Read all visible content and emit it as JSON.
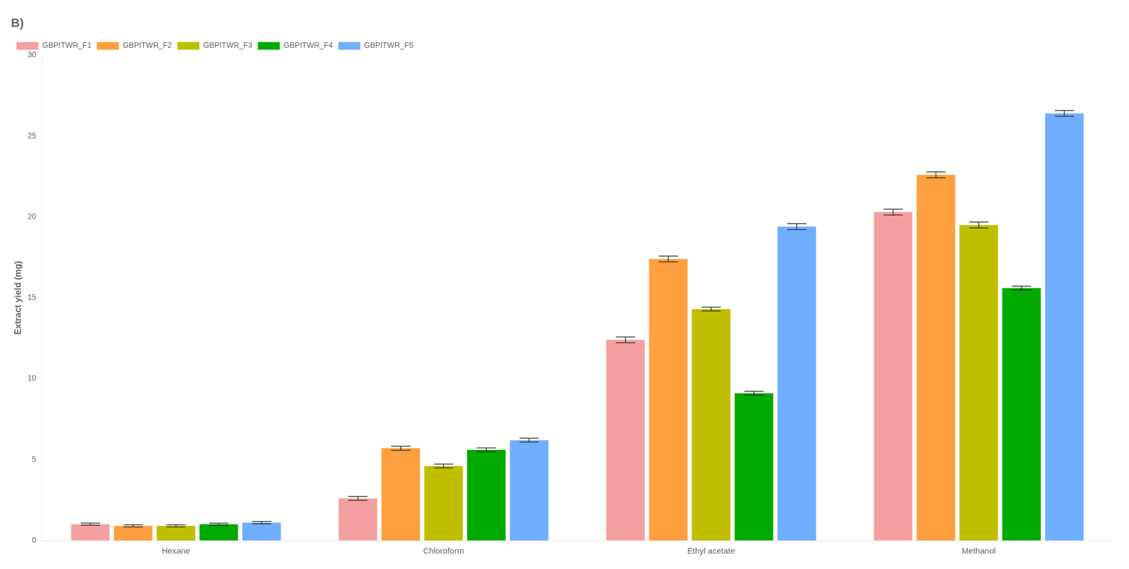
{
  "chart_data": {
    "type": "bar",
    "title": "B)",
    "categories": [
      "Hexane",
      "Chloroform",
      "Ethyl acetate",
      "Methanol"
    ],
    "series": [
      {
        "name": "GBPITWR_F1",
        "color": "#F4A0A0",
        "values": [
          1.0,
          2.6,
          12.4,
          20.3
        ],
        "errors": [
          0.07,
          0.12,
          0.18,
          0.18
        ]
      },
      {
        "name": "GBPITWR_F2",
        "color": "#FFA040",
        "values": [
          0.9,
          5.7,
          17.4,
          22.6
        ],
        "errors": [
          0.07,
          0.12,
          0.18,
          0.18
        ]
      },
      {
        "name": "GBPITWR_F3",
        "color": "#BFBF00",
        "values": [
          0.9,
          4.6,
          14.3,
          19.5
        ],
        "errors": [
          0.07,
          0.12,
          0.12,
          0.18
        ]
      },
      {
        "name": "GBPITWR_F4",
        "color": "#00AA00",
        "values": [
          1.0,
          5.6,
          9.1,
          15.6
        ],
        "errors": [
          0.07,
          0.12,
          0.12,
          0.12
        ]
      },
      {
        "name": "GBPITWR_F5",
        "color": "#70AEFF",
        "values": [
          1.1,
          6.2,
          19.4,
          26.4
        ],
        "errors": [
          0.07,
          0.12,
          0.18,
          0.18
        ]
      }
    ],
    "ylabel": "Extract yield (mg)",
    "ylim": [
      0,
      30
    ],
    "yticks": [
      0,
      5,
      10,
      15,
      20,
      25,
      30
    ],
    "grid": false,
    "legend": "upper left"
  }
}
